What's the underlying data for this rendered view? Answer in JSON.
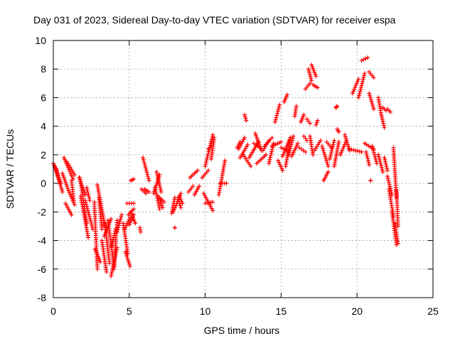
{
  "chart_data": {
    "type": "scatter",
    "title": "Day 031 of 2023, Sidereal Day-to-day VTEC variation (SDTVAR) for receiver espa",
    "xlabel": "GPS time / hours",
    "ylabel": "SDTVAR / TECUs",
    "xlim": [
      0,
      25
    ],
    "ylim": [
      -8,
      10
    ],
    "x_ticks": [
      0,
      5,
      10,
      15,
      20,
      25
    ],
    "y_ticks": [
      -8,
      -6,
      -4,
      -2,
      0,
      2,
      4,
      6,
      8,
      10
    ],
    "grid": true,
    "legend": "none",
    "marker": "+",
    "series_color": "#ff0000",
    "series": [
      {
        "name": "SDTVAR",
        "tracks": [
          [
            0.0,
            1.4,
            0.5,
            0.0
          ],
          [
            0.1,
            1.2,
            0.6,
            -0.6
          ],
          [
            0.2,
            1.0,
            0.45,
            0.0
          ],
          [
            0.6,
            0.7,
            1.0,
            -0.5
          ],
          [
            0.7,
            1.8,
            1.3,
            0.3
          ],
          [
            0.8,
            -1.4,
            1.2,
            -2.2
          ],
          [
            0.9,
            1.5,
            1.4,
            0.6
          ],
          [
            1.0,
            -0.5,
            1.4,
            -1.5
          ],
          [
            1.2,
            0.2,
            1.35,
            -1.2
          ],
          [
            1.7,
            0.4,
            2.1,
            -0.8
          ],
          [
            1.75,
            0.4,
            2.2,
            -2.8
          ],
          [
            1.8,
            -0.9,
            2.3,
            -3.8
          ],
          [
            2.1,
            -1.2,
            2.6,
            -3.2
          ],
          [
            2.2,
            -0.3,
            2.4,
            -1.2
          ],
          [
            2.7,
            -1.3,
            2.9,
            -6.0
          ],
          [
            2.75,
            -4.6,
            3.1,
            -5.5
          ],
          [
            2.9,
            -0.1,
            3.4,
            -3.0
          ],
          [
            3.0,
            -1.0,
            3.2,
            -3.2
          ],
          [
            3.2,
            -4.0,
            3.5,
            -6.2
          ],
          [
            3.35,
            -3.7,
            3.8,
            -2.5
          ],
          [
            3.4,
            -2.8,
            3.7,
            -5.6
          ],
          [
            3.6,
            -2.6,
            4.0,
            -5.8
          ],
          [
            3.8,
            -6.5,
            4.2,
            -4.5
          ],
          [
            3.85,
            -4.4,
            4.1,
            -3.2
          ],
          [
            4.0,
            -6.0,
            4.2,
            -2.6
          ],
          [
            4.2,
            -3.4,
            4.5,
            -2.2
          ],
          [
            4.6,
            -2.8,
            4.9,
            -4.9
          ],
          [
            4.7,
            -3.2,
            5.05,
            -2.4
          ],
          [
            4.85,
            -1.4,
            5.3,
            -1.4
          ],
          [
            4.95,
            -2.2,
            5.3,
            -1.8
          ],
          [
            5.0,
            -2.9,
            5.3,
            -2.2
          ],
          [
            5.1,
            -2.0,
            5.4,
            -2.8
          ],
          [
            4.75,
            -4.8,
            5.05,
            -5.8
          ],
          [
            5.1,
            0.2,
            5.3,
            0.3
          ],
          [
            5.7,
            -3.1,
            5.75,
            -3.4
          ],
          [
            5.8,
            -0.4,
            6.1,
            -0.7
          ],
          [
            5.9,
            1.8,
            6.3,
            0.2
          ],
          [
            6.0,
            -0.4,
            6.3,
            -0.6
          ],
          [
            6.6,
            -0.7,
            7.0,
            0.6
          ],
          [
            6.8,
            0.8,
            7.1,
            -0.6
          ],
          [
            6.9,
            -0.9,
            7.3,
            -1.3
          ],
          [
            6.7,
            -0.3,
            7.0,
            -1.8
          ],
          [
            7.0,
            -1.0,
            7.2,
            -1.7
          ],
          [
            7.9,
            -2.0,
            8.4,
            -0.7
          ],
          [
            7.8,
            -2.1,
            8.0,
            -1.0
          ],
          [
            8.2,
            -1.0,
            8.4,
            -1.7
          ],
          [
            8.3,
            -0.9,
            8.5,
            -1.4
          ],
          [
            8.0,
            -3.1,
            8.0,
            -3.1
          ],
          [
            8.9,
            -0.6,
            9.2,
            -0.2
          ],
          [
            9.0,
            0.4,
            9.5,
            0.9
          ],
          [
            9.3,
            -0.8,
            9.6,
            -0.2
          ],
          [
            9.8,
            0.4,
            10.2,
            0.9
          ],
          [
            9.9,
            -0.7,
            10.5,
            -1.9
          ],
          [
            10.0,
            -1.4,
            10.5,
            -1.3
          ],
          [
            10.0,
            1.2,
            10.5,
            3.4
          ],
          [
            10.2,
            2.4,
            10.4,
            2.6
          ],
          [
            10.4,
            1.7,
            10.6,
            3.2
          ],
          [
            10.9,
            -0.8,
            11.3,
            1.6
          ],
          [
            11.0,
            0.0,
            11.4,
            0.0
          ],
          [
            12.1,
            2.5,
            12.3,
            2.9
          ],
          [
            12.2,
            2.4,
            12.6,
            3.2
          ],
          [
            12.3,
            1.8,
            12.8,
            2.7
          ],
          [
            12.5,
            2.0,
            13.0,
            1.2
          ],
          [
            12.6,
            4.8,
            12.7,
            4.4
          ],
          [
            12.9,
            1.8,
            13.5,
            2.9
          ],
          [
            13.2,
            2.8,
            13.6,
            2.5
          ],
          [
            13.3,
            3.5,
            13.7,
            2.3
          ],
          [
            13.4,
            1.4,
            14.0,
            2.0
          ],
          [
            13.8,
            2.3,
            14.2,
            3.0
          ],
          [
            13.9,
            2.6,
            14.4,
            3.2
          ],
          [
            14.2,
            1.4,
            14.5,
            2.8
          ],
          [
            14.4,
            2.6,
            15.0,
            2.9
          ],
          [
            14.6,
            4.3,
            14.9,
            5.5
          ],
          [
            14.8,
            1.6,
            15.1,
            0.9
          ],
          [
            15.0,
            2.5,
            15.4,
            2.3
          ],
          [
            15.1,
            1.9,
            15.6,
            3.2
          ],
          [
            15.2,
            5.7,
            15.4,
            6.2
          ],
          [
            15.3,
            1.2,
            15.6,
            3.0
          ],
          [
            15.5,
            2.0,
            15.8,
            3.3
          ],
          [
            15.7,
            1.9,
            16.1,
            2.8
          ],
          [
            15.9,
            4.7,
            16.0,
            5.4
          ],
          [
            16.3,
            4.3,
            16.5,
            4.8
          ],
          [
            16.2,
            2.5,
            16.6,
            2.2
          ],
          [
            16.5,
            3.3,
            16.7,
            3.0
          ],
          [
            16.6,
            6.6,
            16.9,
            7.0
          ],
          [
            16.8,
            8.0,
            17.0,
            7.2
          ],
          [
            17.0,
            8.3,
            17.3,
            7.5
          ],
          [
            16.7,
            4.5,
            16.9,
            4.2
          ],
          [
            17.1,
            6.9,
            17.4,
            6.7
          ],
          [
            17.2,
            2.3,
            17.6,
            3.0
          ],
          [
            16.9,
            3.3,
            17.1,
            2.0
          ],
          [
            17.3,
            4.1,
            17.4,
            4.4
          ],
          [
            17.8,
            0.2,
            18.1,
            0.8
          ],
          [
            17.7,
            2.6,
            18.1,
            1.2
          ],
          [
            18.0,
            2.9,
            18.3,
            2.5
          ],
          [
            18.2,
            1.7,
            18.5,
            3.0
          ],
          [
            18.5,
            1.2,
            18.8,
            2.9
          ],
          [
            18.7,
            3.8,
            18.8,
            3.6
          ],
          [
            18.6,
            5.3,
            18.7,
            5.4
          ],
          [
            18.9,
            2.0,
            19.3,
            3.0
          ],
          [
            19.2,
            3.4,
            19.5,
            2.3
          ],
          [
            19.5,
            2.4,
            20.3,
            2.2
          ],
          [
            19.7,
            6.3,
            20.1,
            7.3
          ],
          [
            20.1,
            6.0,
            20.5,
            7.7
          ],
          [
            20.3,
            8.6,
            20.7,
            8.8
          ],
          [
            20.5,
            2.8,
            21.1,
            2.4
          ],
          [
            20.6,
            2.2,
            20.8,
            1.3
          ],
          [
            20.8,
            7.8,
            21.1,
            7.4
          ],
          [
            20.8,
            6.3,
            21.1,
            5.2
          ],
          [
            21.0,
            2.6,
            21.3,
            1.4
          ],
          [
            20.9,
            0.2,
            20.9,
            0.2
          ],
          [
            21.4,
            6.0,
            21.6,
            4.8
          ],
          [
            21.6,
            4.8,
            21.8,
            3.9
          ],
          [
            21.4,
            2.0,
            21.7,
            0.8
          ],
          [
            21.8,
            1.8,
            22.0,
            0.9
          ],
          [
            21.7,
            5.3,
            21.9,
            5.1
          ],
          [
            22.0,
            5.2,
            22.2,
            5.0
          ],
          [
            22.0,
            0.5,
            22.3,
            -0.8
          ],
          [
            22.1,
            -0.4,
            22.4,
            -2.3
          ],
          [
            22.3,
            -2.0,
            22.6,
            -4.3
          ],
          [
            22.4,
            2.5,
            22.6,
            -1.0
          ],
          [
            22.5,
            -2.8,
            22.7,
            -4.2
          ],
          [
            22.6,
            -0.5,
            22.7,
            -3.0
          ]
        ]
      }
    ]
  }
}
